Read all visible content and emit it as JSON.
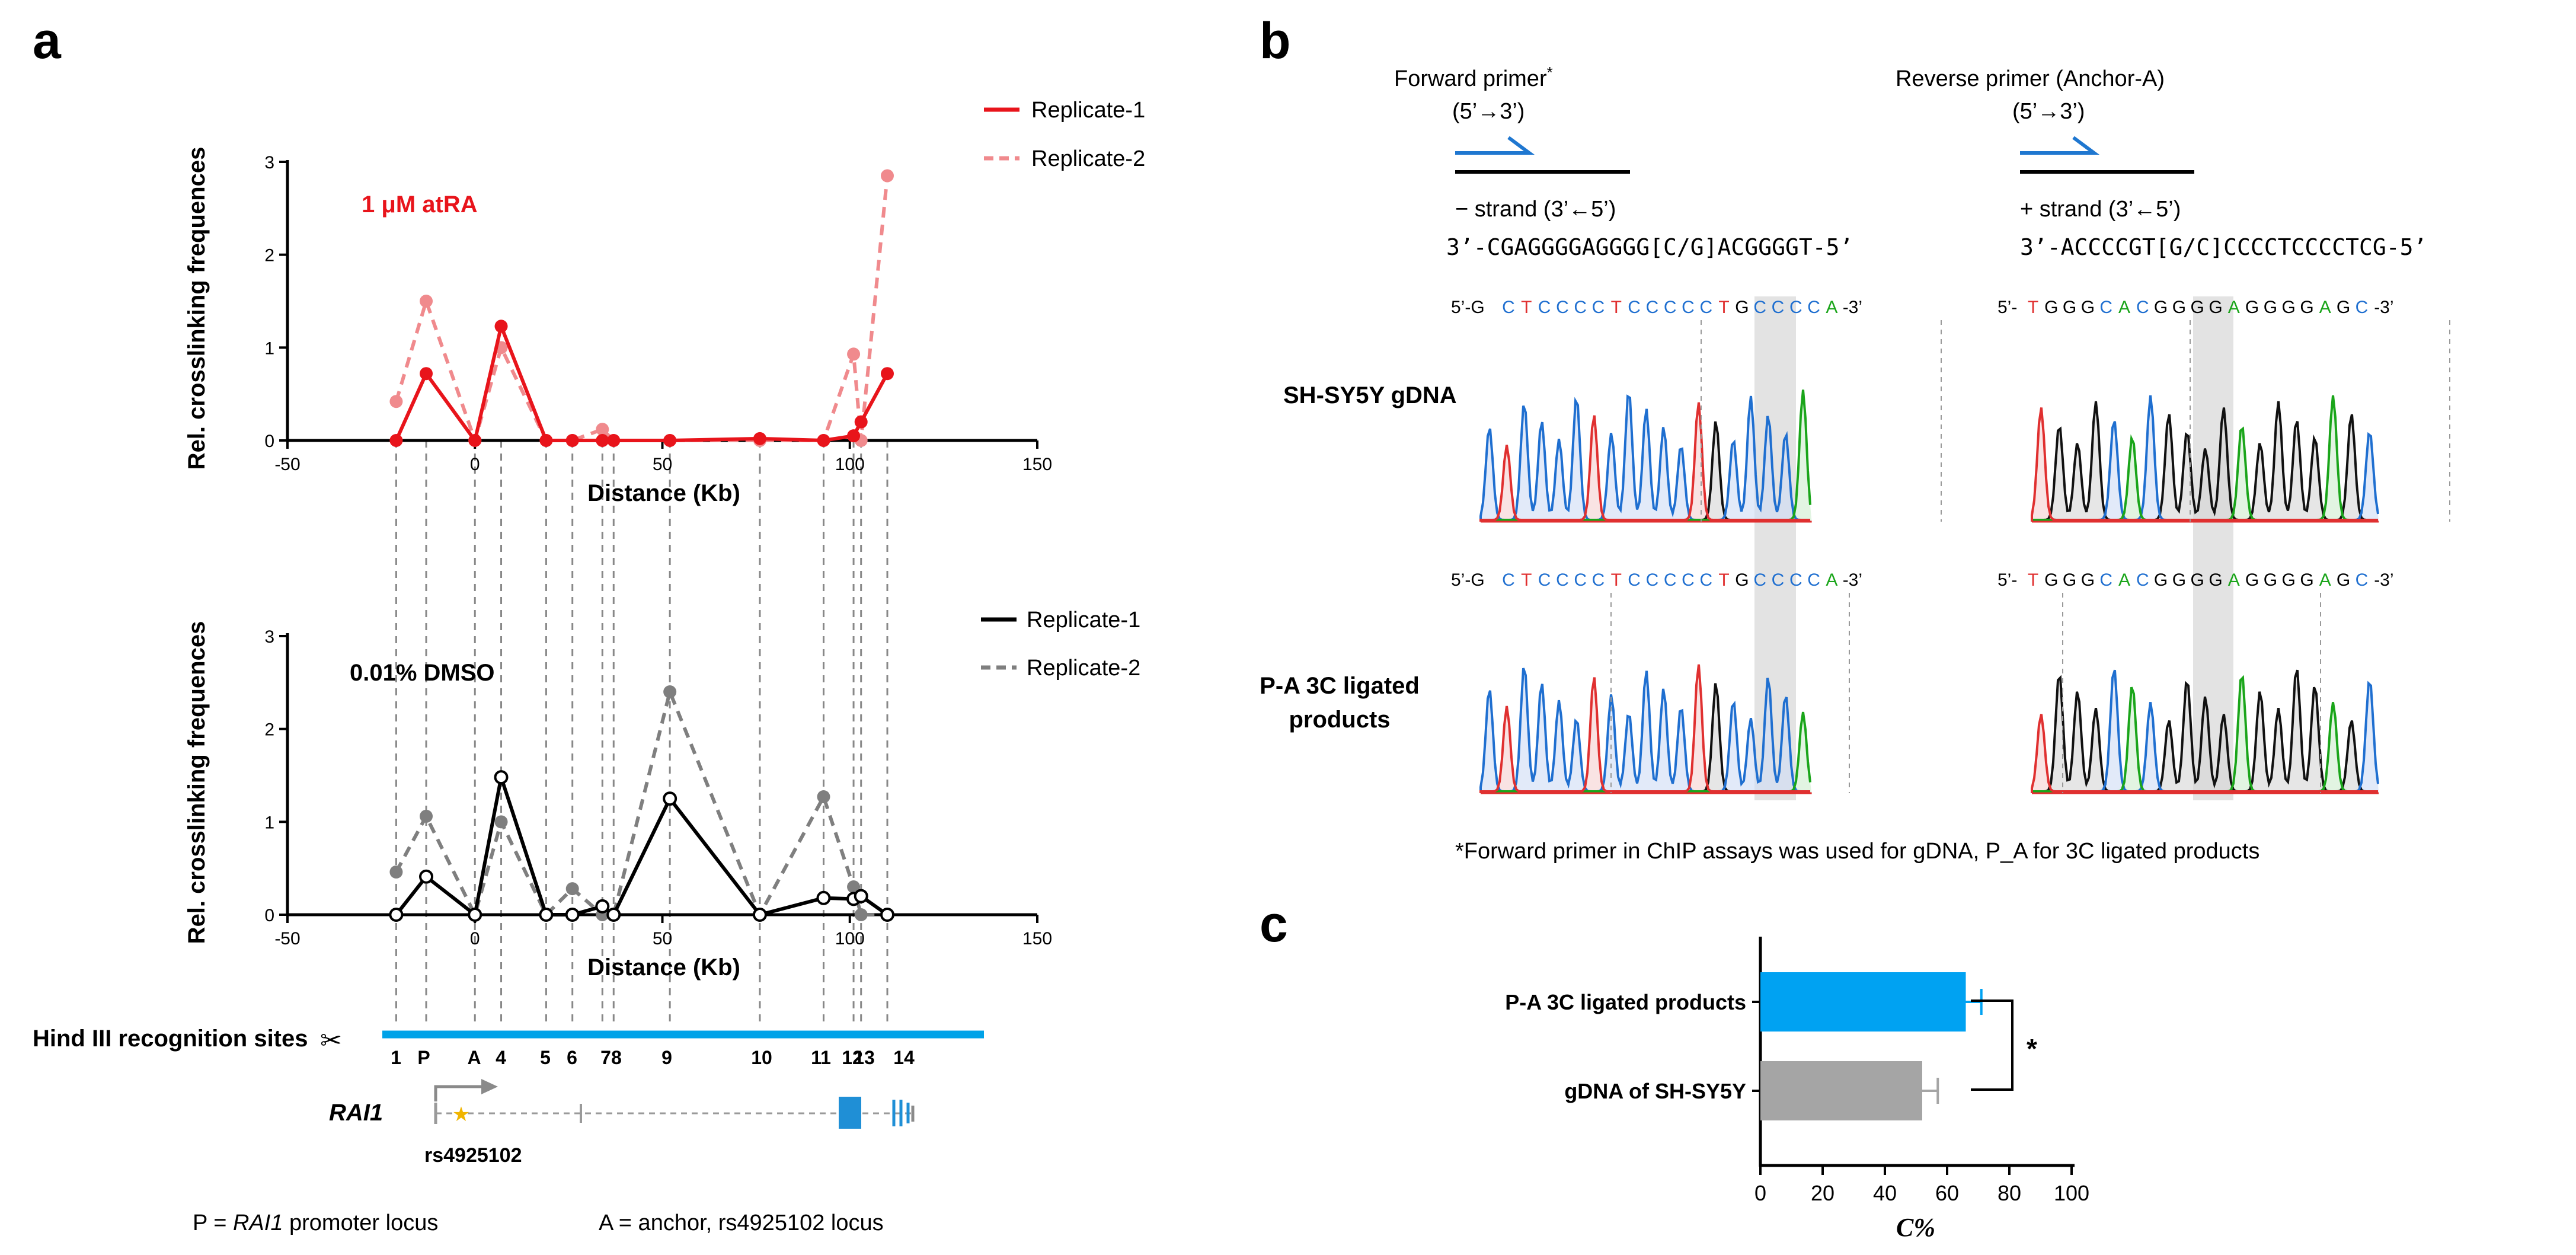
{
  "panels": {
    "a": "a",
    "b": "b",
    "c": "c"
  },
  "chart_data": [
    {
      "type": "line",
      "panel": "a-top",
      "title": "1 μM atRA",
      "xlabel": "Distance (Kb)",
      "ylabel": "Rel. crosslinking frequences",
      "xlim": [
        -50,
        150
      ],
      "ylim": [
        0,
        3
      ],
      "xticks": [
        "-50",
        "0",
        "50",
        "100",
        "150"
      ],
      "yticks": [
        "0",
        "1",
        "2",
        "3"
      ],
      "x": [
        -21,
        -13,
        0,
        7,
        19,
        26,
        34,
        37,
        52,
        76,
        93,
        101,
        103,
        110
      ],
      "series": [
        {
          "name": "Replicate-1",
          "color": "#e8141b",
          "dashed": false,
          "values": [
            0,
            0.72,
            0,
            1.23,
            0,
            0,
            0,
            0,
            0,
            0.02,
            0,
            0.05,
            0.2,
            0.72
          ]
        },
        {
          "name": "Replicate-2",
          "color": "#f08a8d",
          "dashed": true,
          "values": [
            0.42,
            1.5,
            0,
            1.0,
            0,
            0,
            0.12,
            0,
            0,
            0,
            0,
            0.93,
            0,
            2.85
          ]
        }
      ]
    },
    {
      "type": "line",
      "panel": "a-bottom",
      "title": "0.01% DMSO",
      "xlabel": "Distance (Kb)",
      "ylabel": "Rel. crosslinking frequences",
      "xlim": [
        -50,
        150
      ],
      "ylim": [
        0,
        3
      ],
      "xticks": [
        "-50",
        "0",
        "50",
        "100",
        "150"
      ],
      "yticks": [
        "0",
        "1",
        "2",
        "3"
      ],
      "x": [
        -21,
        -13,
        0,
        7,
        19,
        26,
        34,
        37,
        52,
        76,
        93,
        101,
        103,
        110
      ],
      "series": [
        {
          "name": "Replicate-1",
          "color": "#000000",
          "dashed": false,
          "values": [
            0,
            0.41,
            0,
            1.48,
            0,
            0,
            0.09,
            0,
            1.25,
            0,
            0.18,
            0.17,
            0.2,
            0
          ]
        },
        {
          "name": "Replicate-2",
          "color": "#7f7f7f",
          "dashed": true,
          "values": [
            0.46,
            1.06,
            0,
            1.0,
            0,
            0.28,
            0,
            0,
            2.4,
            0,
            1.27,
            0.3,
            0,
            0
          ]
        }
      ]
    },
    {
      "type": "bar",
      "panel": "c",
      "orientation": "horizontal",
      "categories": [
        "P-A 3C ligated products",
        "gDNA of SH-SY5Y"
      ],
      "values": [
        66,
        52
      ],
      "errors": [
        5,
        5
      ],
      "colors": [
        "#00a2f2",
        "#a5a5a5"
      ],
      "xlabel": "C%",
      "xlim": [
        0,
        100
      ],
      "xticks": [
        "0",
        "20",
        "40",
        "60",
        "80",
        "100"
      ],
      "significance": "*"
    }
  ],
  "panel_a": {
    "hind_label": "Hind III recognition sites",
    "scissors": "✂",
    "sites": [
      "1",
      "P",
      "A",
      "4",
      "5",
      "6",
      "7",
      "8",
      "9",
      "10",
      "11",
      "12",
      "13",
      "14"
    ],
    "gene_name": "RAI1",
    "snp_label": "rs4925102",
    "footnote_p_prefix": "P = ",
    "footnote_p_gene": "RAI1",
    "footnote_p_suffix": " promoter locus",
    "footnote_a": "A = anchor, rs4925102 locus"
  },
  "panel_b": {
    "forward_primer": "Forward primer",
    "forward_sup": "*",
    "reverse_primer": "Reverse primer (Anchor-A)",
    "direction": "(5’→3’)",
    "minus_strand": "− strand (3’←5’)",
    "plus_strand": "+ strand (3’←5’)",
    "seq_forward": "3’-CGAGGGGAGGGG[C/G]ACGGGGT-5’",
    "seq_reverse": "3’-ACCCCGT[G/C]CCCCTCCCCTCG-5’",
    "row1_label": "SH-SY5Y gDNA",
    "row2_label_1": "P-A 3C ligated",
    "row2_label_2": "products",
    "left_prefix": "5’-G",
    "left_suffix": "-3’",
    "left_bases": [
      "C",
      "T",
      "C",
      "C",
      "C",
      "C",
      "T",
      "C",
      "C",
      "C",
      "C",
      "C",
      "T",
      "G",
      "C",
      "C",
      "C",
      "C",
      "A"
    ],
    "right_prefix": "5’-",
    "right_suffix": "-3’",
    "right_bases": [
      "T",
      "G",
      "G",
      "G",
      "C",
      "A",
      "C",
      "G",
      "G",
      "G",
      "G",
      "A",
      "G",
      "G",
      "G",
      "G",
      "A",
      "G",
      "C"
    ],
    "footnote": "*Forward primer in ChIP assays was used for gDNA, P_A for 3C ligated products"
  }
}
